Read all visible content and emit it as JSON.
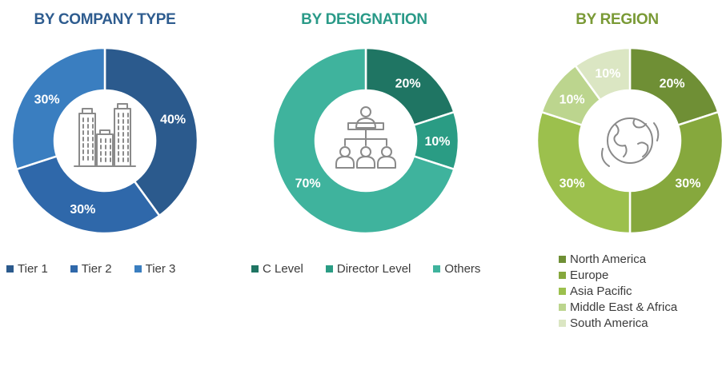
{
  "chart_data": [
    {
      "type": "pie",
      "title": "BY COMPANY TYPE",
      "title_color": "#2e5c8f",
      "categories": [
        "Tier 1",
        "Tier 2",
        "Tier 3"
      ],
      "values": [
        40,
        30,
        30
      ],
      "labels": [
        "40%",
        "30%",
        "30%"
      ],
      "colors": [
        "#2b5a8d",
        "#2f68aa",
        "#3a7ec0"
      ],
      "label_color": "#ffffff",
      "center_icon": "buildings-icon",
      "legend_position": "bottom"
    },
    {
      "type": "pie",
      "title": "BY DESIGNATION",
      "title_color": "#2a9a88",
      "categories": [
        "C Level",
        "Director Level",
        "Others"
      ],
      "values": [
        20,
        10,
        70
      ],
      "labels": [
        "20%",
        "10%",
        "70%"
      ],
      "colors": [
        "#1f7563",
        "#2a9c84",
        "#3fb39d"
      ],
      "label_color": "#ffffff",
      "center_icon": "org-hierarchy-icon",
      "legend_position": "bottom"
    },
    {
      "type": "pie",
      "title": "BY REGION",
      "title_color": "#7a9a36",
      "categories": [
        "North America",
        "Europe",
        "Asia Pacific",
        "Middle East & Africa",
        "South America"
      ],
      "values": [
        20,
        30,
        30,
        10,
        10
      ],
      "labels": [
        "20%",
        "30%",
        "30%",
        "10%",
        "10%"
      ],
      "colors": [
        "#6f8f35",
        "#86a83d",
        "#9cc04d",
        "#bcd58e",
        "#dbe6c3"
      ],
      "label_color": "#ffffff",
      "center_icon": "globe-icon",
      "legend_position": "bottom"
    }
  ]
}
